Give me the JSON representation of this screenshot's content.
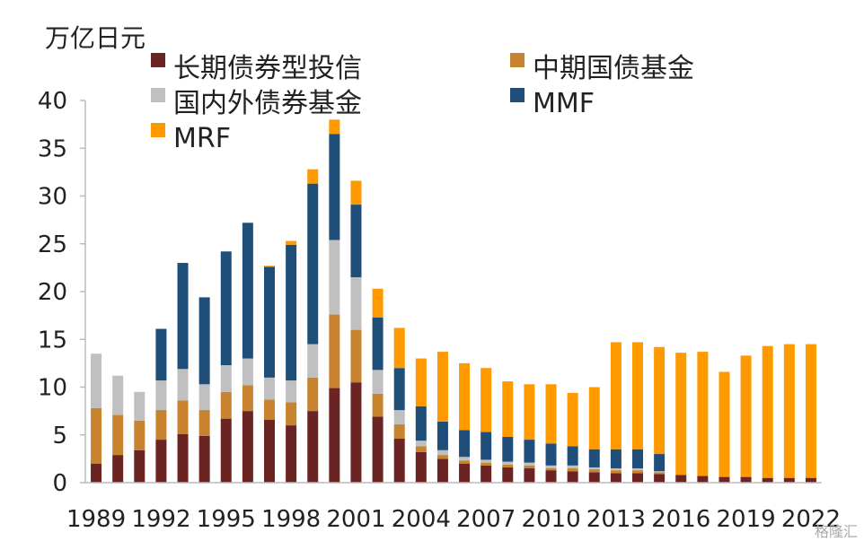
{
  "chart_data": {
    "type": "bar",
    "stacked": true,
    "unit_label": "万亿日元",
    "years": [
      1989,
      1990,
      1991,
      1992,
      1993,
      1994,
      1995,
      1996,
      1997,
      1998,
      1999,
      2000,
      2001,
      2002,
      2003,
      2004,
      2005,
      2006,
      2007,
      2008,
      2009,
      2010,
      2011,
      2012,
      2013,
      2014,
      2015,
      2016,
      2017,
      2018,
      2019,
      2020,
      2021,
      2022
    ],
    "x_tick_labels": [
      "1989",
      "1992",
      "1995",
      "1998",
      "2001",
      "2004",
      "2007",
      "2010",
      "2013",
      "2016",
      "2019",
      "2022"
    ],
    "x_tick_years": [
      1989,
      1992,
      1995,
      1998,
      2001,
      2004,
      2007,
      2010,
      2013,
      2016,
      2019,
      2022
    ],
    "ylim": [
      0,
      40
    ],
    "y_ticks": [
      0,
      5,
      10,
      15,
      20,
      25,
      30,
      35,
      40
    ],
    "grid": false,
    "legend_position": "top",
    "series": [
      {
        "name": "长期债券型投信",
        "color": "#6B2424",
        "values": [
          2.0,
          2.9,
          3.4,
          4.5,
          5.1,
          4.9,
          6.7,
          7.5,
          6.6,
          6.0,
          7.5,
          9.9,
          10.5,
          6.9,
          4.6,
          3.2,
          2.5,
          2.0,
          1.8,
          1.6,
          1.5,
          1.3,
          1.2,
          1.1,
          1.0,
          1.0,
          0.9,
          0.8,
          0.7,
          0.6,
          0.6,
          0.5,
          0.5,
          0.5
        ]
      },
      {
        "name": "中期国债基金",
        "color": "#C8832E",
        "values": [
          5.8,
          4.2,
          3.1,
          3.1,
          3.5,
          2.7,
          2.8,
          2.7,
          2.1,
          2.4,
          3.5,
          7.7,
          5.5,
          2.4,
          1.5,
          0.6,
          0.4,
          0.3,
          0.3,
          0.3,
          0.3,
          0.2,
          0.3,
          0.3,
          0.3,
          0.3,
          0.2,
          0,
          0,
          0,
          0,
          0,
          0,
          0
        ]
      },
      {
        "name": "国内外债券基金",
        "color": "#C0C0C0",
        "values": [
          5.7,
          4.1,
          3.0,
          3.1,
          3.3,
          2.7,
          2.8,
          2.8,
          2.3,
          2.3,
          3.5,
          7.8,
          5.5,
          2.5,
          1.5,
          0.6,
          0.5,
          0.4,
          0.3,
          0.3,
          0.3,
          0.3,
          0.3,
          0.2,
          0.2,
          0.2,
          0.1,
          0,
          0,
          0,
          0,
          0,
          0,
          0
        ]
      },
      {
        "name": "MMF",
        "color": "#1F4E79",
        "values": [
          0,
          0,
          0,
          5.4,
          11.1,
          9.1,
          11.9,
          14.2,
          11.6,
          14.2,
          16.8,
          11.1,
          7.6,
          5.5,
          4.4,
          3.6,
          3.0,
          2.8,
          2.9,
          2.6,
          2.4,
          2.3,
          2.0,
          1.9,
          2.0,
          2.0,
          1.8,
          0,
          0,
          0,
          0,
          0,
          0,
          0
        ]
      },
      {
        "name": "MRF",
        "color": "#FF9900",
        "values": [
          0,
          0,
          0,
          0,
          0,
          0,
          0,
          0,
          0.1,
          0.4,
          1.5,
          1.5,
          2.5,
          3.0,
          4.2,
          5.0,
          7.3,
          7.0,
          6.7,
          5.8,
          5.8,
          6.2,
          5.6,
          6.5,
          11.2,
          11.2,
          11.2,
          12.8,
          13.0,
          11.0,
          12.7,
          13.8,
          14.0,
          14.0
        ]
      }
    ]
  },
  "watermark": "格隆汇"
}
